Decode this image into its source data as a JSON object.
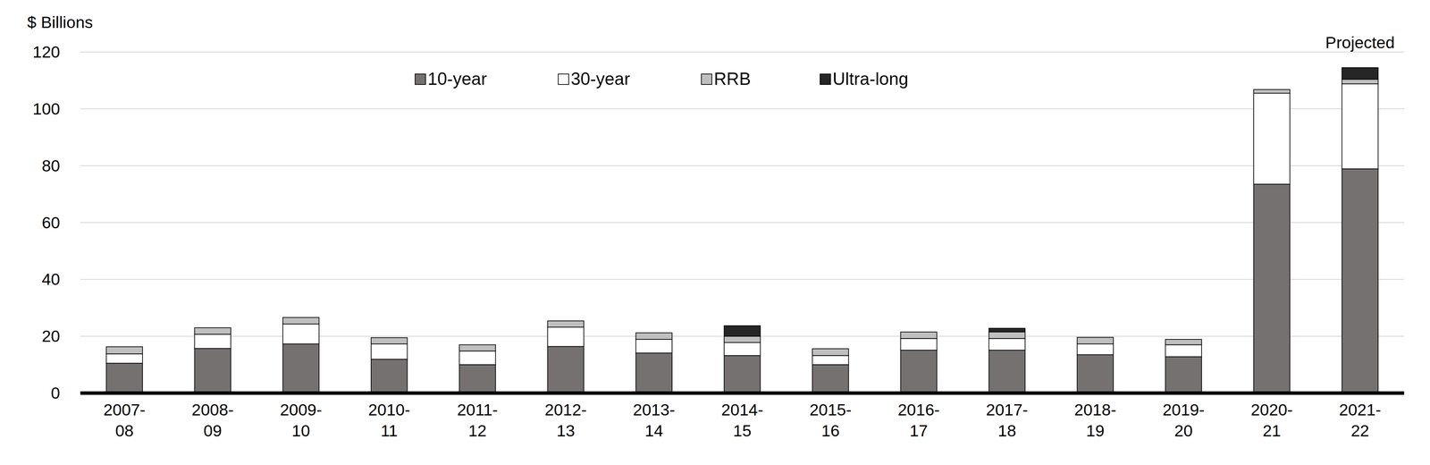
{
  "chart_data": {
    "type": "bar",
    "stacked": true,
    "ylabel": "$ Billions",
    "categories": [
      "2007-08",
      "2008-09",
      "2009-10",
      "2010-11",
      "2011-12",
      "2012-13",
      "2013-14",
      "2014-15",
      "2015-16",
      "2016-17",
      "2017-18",
      "2018-19",
      "2019-20",
      "2020-21",
      "2021-22"
    ],
    "series": [
      {
        "name": "10-year",
        "color": "#767171",
        "values": [
          10.5,
          15.7,
          17.3,
          11.9,
          10.0,
          16.4,
          14.1,
          13.2,
          10.0,
          15.1,
          15.1,
          13.5,
          12.8,
          73.5,
          78.9
        ]
      },
      {
        "name": "30-year",
        "color": "#ffffff",
        "values": [
          3.3,
          5.0,
          7.0,
          5.4,
          4.8,
          6.8,
          4.8,
          4.6,
          3.2,
          4.1,
          4.1,
          3.8,
          4.2,
          32.0,
          29.9
        ]
      },
      {
        "name": "RRB",
        "color": "#bfbfbf",
        "values": [
          2.5,
          2.3,
          2.3,
          2.2,
          2.2,
          2.2,
          2.3,
          2.2,
          2.4,
          2.3,
          2.3,
          2.3,
          1.9,
          1.3,
          1.6
        ]
      },
      {
        "name": "Ultra-long",
        "color": "#262626",
        "values": [
          0,
          0,
          0,
          0,
          0,
          0,
          0,
          3.7,
          0,
          0,
          1.3,
          0,
          0,
          0,
          4.1
        ]
      }
    ],
    "ylim": [
      0,
      120
    ],
    "yticks": [
      0,
      20,
      40,
      60,
      80,
      100,
      120
    ],
    "grid": true,
    "legend": "top",
    "annotations": [
      {
        "text": "Projected",
        "x": "2021-22"
      }
    ]
  }
}
